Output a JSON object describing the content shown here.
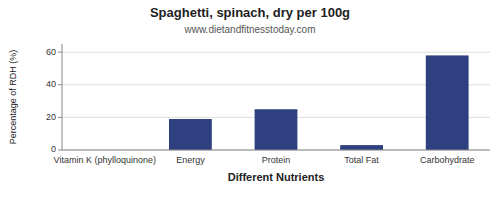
{
  "chart_data": {
    "type": "bar",
    "title": "Spaghetti, spinach, dry per 100g",
    "subtitle": "www.dietandfitnesstoday.com",
    "xlabel": "Different Nutrients",
    "ylabel": "Percentage of RDH (%)",
    "categories": [
      "Vitamin K (phylloquinone)",
      "Energy",
      "Protein",
      "Total Fat",
      "Carbohydrate"
    ],
    "values": [
      0,
      19,
      25,
      3,
      58
    ],
    "color": "#2e4080",
    "ylim": [
      0,
      65
    ],
    "yticks": [
      0,
      20,
      40,
      60
    ],
    "grid": true
  }
}
